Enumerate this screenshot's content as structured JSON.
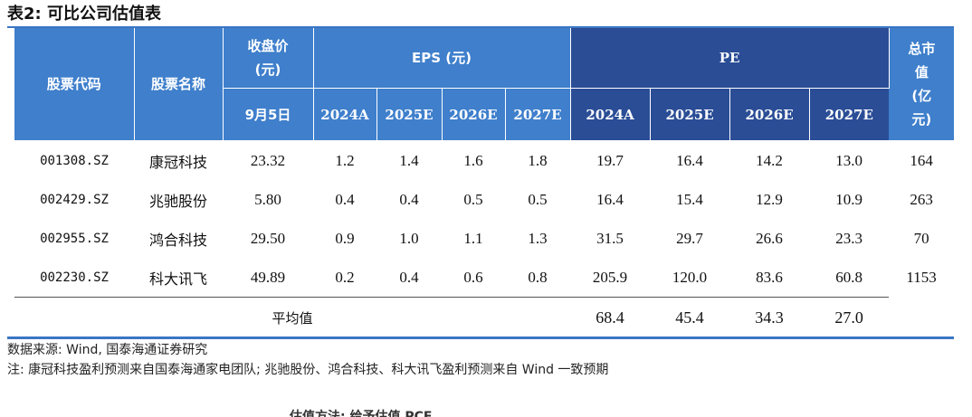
{
  "title": "表2: 可比公司估值表",
  "header": {
    "code": "股票代码",
    "name": "股票名称",
    "close_1": "收盘价",
    "close_2": "(元)",
    "close_date": "9月5日",
    "eps": "EPS (元)",
    "pe": "PE",
    "mcap_1": "总市",
    "mcap_2": "值",
    "mcap_3": "(亿",
    "mcap_4": "元)",
    "years": [
      "2024A",
      "2025E",
      "2026E",
      "2027E"
    ]
  },
  "rows": [
    {
      "code": "001308.SZ",
      "name": "康冠科技",
      "close": "23.32",
      "eps": [
        "1.2",
        "1.4",
        "1.6",
        "1.8"
      ],
      "pe": [
        "19.7",
        "16.4",
        "14.2",
        "13.0"
      ],
      "mcap": "164"
    },
    {
      "code": "002429.SZ",
      "name": "兆驰股份",
      "close": "5.80",
      "eps": [
        "0.4",
        "0.4",
        "0.5",
        "0.5"
      ],
      "pe": [
        "16.4",
        "15.4",
        "12.9",
        "10.9"
      ],
      "mcap": "263"
    },
    {
      "code": "002955.SZ",
      "name": "鸿合科技",
      "close": "29.50",
      "eps": [
        "0.9",
        "1.0",
        "1.1",
        "1.3"
      ],
      "pe": [
        "31.5",
        "29.7",
        "26.6",
        "23.3"
      ],
      "mcap": "70"
    },
    {
      "code": "002230.SZ",
      "name": "科大讯飞",
      "close": "49.89",
      "eps": [
        "0.2",
        "0.4",
        "0.6",
        "0.8"
      ],
      "pe": [
        "205.9",
        "120.0",
        "83.6",
        "60.8"
      ],
      "mcap": "1153"
    }
  ],
  "average": {
    "label": "平均值",
    "pe": [
      "68.4",
      "45.4",
      "34.3",
      "27.0"
    ]
  },
  "notes": {
    "source": "数据来源: Wind, 国泰海通证券研究",
    "note": "注: 康冠科技盈利预测来自国泰海通家电团队; 兆驰股份、鸿合科技、科大讯飞盈利预测来自 Wind 一致预期"
  },
  "cut_text": "估值方法: 给予估值 PCF",
  "colors": {
    "header_blue": "#3f7fcc",
    "header_dark": "#2a4d96",
    "rule": "#3a76c4"
  }
}
